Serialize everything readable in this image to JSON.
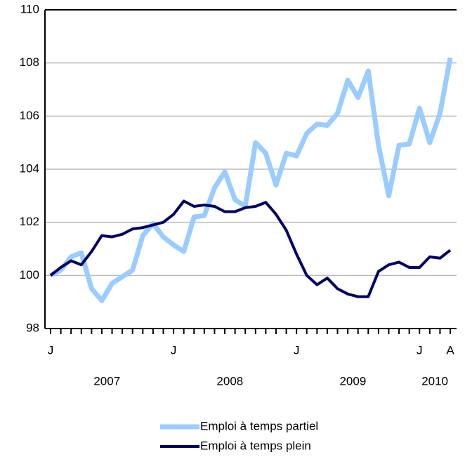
{
  "chart_data": {
    "type": "line",
    "categories": [
      "J",
      null,
      null,
      null,
      null,
      null,
      null,
      null,
      null,
      null,
      null,
      null,
      "J",
      null,
      null,
      null,
      null,
      null,
      null,
      null,
      null,
      null,
      null,
      null,
      "J",
      null,
      null,
      null,
      null,
      null,
      null,
      null,
      null,
      null,
      null,
      null,
      "J",
      null,
      null,
      "A"
    ],
    "year_labels": [
      "2007",
      "2008",
      "2009",
      "2010"
    ],
    "series": [
      {
        "name": "Emploi à temps partiel",
        "color": "#99ccff",
        "values": [
          100.0,
          100.2,
          100.7,
          100.85,
          99.5,
          99.05,
          99.7,
          99.95,
          100.2,
          101.5,
          101.95,
          101.45,
          101.15,
          100.9,
          102.2,
          102.25,
          103.3,
          103.9,
          102.85,
          102.6,
          105.0,
          104.6,
          103.4,
          104.6,
          104.5,
          105.35,
          105.7,
          105.65,
          106.1,
          107.35,
          106.7,
          107.7,
          104.9,
          103.0,
          104.9,
          104.95,
          106.3,
          105.0,
          106.1,
          108.2
        ]
      },
      {
        "name": "Emploi à temps plein",
        "color": "#000066",
        "values": [
          100.0,
          100.3,
          100.55,
          100.4,
          100.9,
          101.5,
          101.45,
          101.55,
          101.75,
          101.8,
          101.9,
          102.0,
          102.3,
          102.8,
          102.6,
          102.65,
          102.6,
          102.4,
          102.4,
          102.55,
          102.6,
          102.75,
          102.3,
          101.7,
          100.8,
          100.0,
          99.65,
          99.9,
          99.5,
          99.3,
          99.2,
          99.2,
          100.15,
          100.4,
          100.5,
          100.3,
          100.3,
          100.7,
          100.65,
          100.95
        ]
      }
    ],
    "ylim": [
      98,
      110
    ],
    "yticks": [
      98,
      100,
      102,
      104,
      106,
      108,
      110
    ],
    "grid": true
  }
}
